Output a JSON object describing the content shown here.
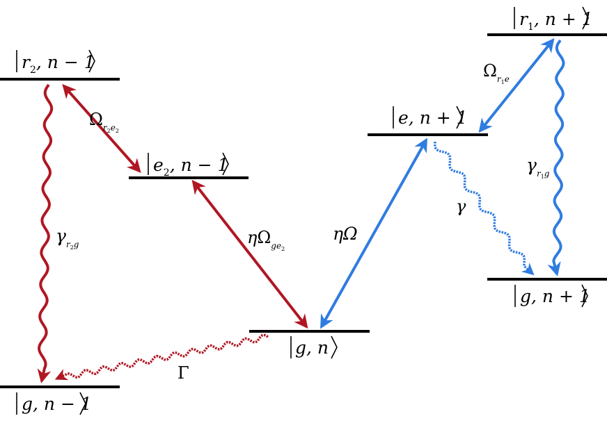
{
  "colors": {
    "level": "#000000",
    "red": "#b01723",
    "blue": "#2f7ce0"
  },
  "states": {
    "r2_nm1": {
      "label": "r",
      "sub": "2",
      "suffix": ", n − 1"
    },
    "e2_nm1": {
      "label": "e",
      "sub": "2",
      "suffix": ", n − 1"
    },
    "g_n": {
      "label": "g, n"
    },
    "g_nm1": {
      "label": "g, n − 1"
    },
    "e_np1": {
      "label": "e, n + 1"
    },
    "r1_np1": {
      "label": "r",
      "sub": "1",
      "suffix": ", n + 1"
    },
    "g_np1": {
      "label": "g, n + 1"
    }
  },
  "transitions": {
    "omega_r2e2": {
      "symbol": "Ω",
      "sub1": "r",
      "sub1sub": "2",
      "sub2": "e",
      "sub2sub": "2"
    },
    "eta_omega_ge2": {
      "prefix": "η",
      "symbol": "Ω",
      "sub1": "ge",
      "sub1sub": "2"
    },
    "eta_omega": {
      "text": "ηΩ"
    },
    "omega_r1e": {
      "symbol": "Ω",
      "sub1": "r",
      "sub1sub": "1",
      "sub2": "e"
    },
    "gamma_r2g": {
      "symbol": "γ",
      "sub1": "r",
      "sub1sub": "2",
      "sub2": "g"
    },
    "gamma_r1g": {
      "symbol": "γ",
      "sub1": "r",
      "sub1sub": "1",
      "sub2": "g"
    },
    "gamma": {
      "text": "γ"
    },
    "Gamma": {
      "text": "Γ"
    }
  }
}
